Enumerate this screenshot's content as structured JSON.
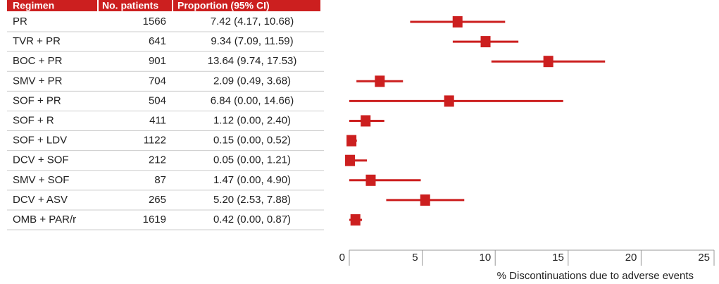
{
  "chart_data": {
    "type": "forest",
    "columns": [
      "Regimen",
      "No. patients",
      "Proportion (95% CI)"
    ],
    "categories": [
      "PR",
      "TVR + PR",
      "BOC + PR",
      "SMV + PR",
      "SOF + PR",
      "SOF + R",
      "SOF + LDV",
      "DCV + SOF",
      "SMV + SOF",
      "DCV + ASV",
      "OMB + PAR/r"
    ],
    "patients": [
      1566,
      641,
      901,
      704,
      504,
      411,
      1122,
      212,
      87,
      265,
      1619
    ],
    "values": [
      7.42,
      9.34,
      13.64,
      2.09,
      6.84,
      1.12,
      0.15,
      0.05,
      1.47,
      5.2,
      0.42
    ],
    "lower": [
      4.17,
      7.09,
      9.74,
      0.49,
      0.0,
      0.0,
      0.0,
      0.0,
      0.0,
      2.53,
      0.0
    ],
    "upper": [
      10.68,
      11.59,
      17.53,
      3.68,
      14.66,
      2.4,
      0.52,
      1.21,
      4.9,
      7.88,
      0.87
    ],
    "value_labels": [
      "7.42 (4.17, 10.68)",
      "9.34 (7.09, 11.59)",
      "13.64 (9.74, 17.53)",
      "2.09 (0.49, 3.68)",
      "6.84 (0.00, 14.66)",
      "1.12 (0.00, 2.40)",
      "0.15 (0.00, 0.52)",
      "0.05 (0.00, 1.21)",
      "1.47 (0.00, 4.90)",
      "5.20 (2.53, 7.88)",
      "0.42 (0.00, 0.87)"
    ],
    "xlabel": "% Discontinuations due to adverse events",
    "xlim": [
      0,
      25
    ],
    "xticks": [
      0,
      5,
      10,
      15,
      20,
      25
    ],
    "color": "#cc1f1f"
  }
}
